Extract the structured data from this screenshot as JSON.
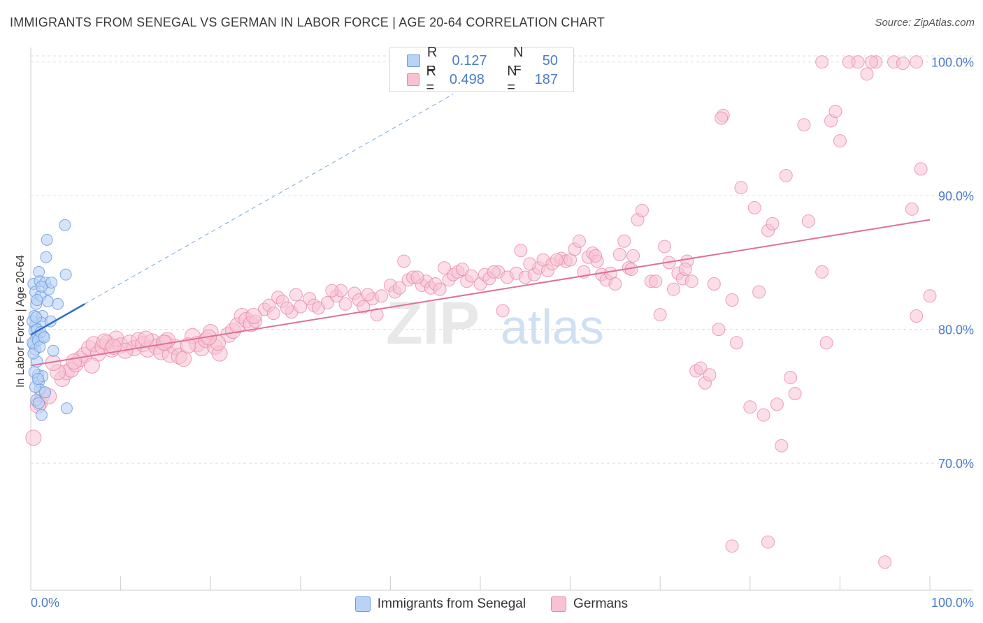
{
  "title": "IMMIGRANTS FROM SENEGAL VS GERMAN IN LABOR FORCE | AGE 20-64 CORRELATION CHART",
  "source": "Source: ZipAtlas.com",
  "watermark": {
    "zip": "ZIP",
    "atlas": "atlas"
  },
  "legend": {
    "r_label": "R =",
    "n_label": "N =",
    "series": [
      {
        "name": "Immigrants from Senegal",
        "r": "0.127",
        "n": "50",
        "fill": "#b9d2f5",
        "stroke": "#6b9be0"
      },
      {
        "name": "Germans",
        "r": "0.498",
        "n": "187",
        "fill": "#f8c2d3",
        "stroke": "#e888a8"
      }
    ]
  },
  "chart_data": {
    "type": "scatter",
    "title": "IMMIGRANTS FROM SENEGAL VS GERMAN IN LABOR FORCE | AGE 20-64 CORRELATION CHART",
    "xlabel": "",
    "ylabel": "In Labor Force | Age 20-64",
    "xlim": [
      0,
      100
    ],
    "ylim": [
      60.5,
      101.5
    ],
    "x_tick_labels": [
      "0.0%",
      "100.0%"
    ],
    "y_ticks": [
      70,
      80,
      90,
      100
    ],
    "y_tick_labels": [
      "70.0%",
      "80.0%",
      "90.0%",
      "100.0%"
    ],
    "grid": true,
    "series": [
      {
        "name": "Immigrants from Senegal",
        "color": "#6b9be0",
        "trend": {
          "x0": 0.0,
          "y0": 79.6,
          "x1": 6.0,
          "y1": 81.9,
          "dash_to_x": 47.0,
          "dash_to_y": 97.6
        },
        "points": [
          [
            0.3,
            83.4
          ],
          [
            0.5,
            82.8
          ],
          [
            0.6,
            81.9
          ],
          [
            0.4,
            81.0
          ],
          [
            0.5,
            80.3
          ],
          [
            0.4,
            79.9
          ],
          [
            0.6,
            79.3
          ],
          [
            0.3,
            78.9
          ],
          [
            0.5,
            78.5
          ],
          [
            0.7,
            77.6
          ],
          [
            0.8,
            76.6
          ],
          [
            0.9,
            76.1
          ],
          [
            1.0,
            75.5
          ],
          [
            0.6,
            74.7
          ],
          [
            1.2,
            73.6
          ],
          [
            0.9,
            84.3
          ],
          [
            1.0,
            83.6
          ],
          [
            1.1,
            82.5
          ],
          [
            1.3,
            81.0
          ],
          [
            1.2,
            80.5
          ],
          [
            1.4,
            79.5
          ],
          [
            1.3,
            76.5
          ],
          [
            1.6,
            75.3
          ],
          [
            1.7,
            85.4
          ],
          [
            1.6,
            83.5
          ],
          [
            1.8,
            86.7
          ],
          [
            1.9,
            82.1
          ],
          [
            2.0,
            83.0
          ],
          [
            2.2,
            80.6
          ],
          [
            2.3,
            83.5
          ],
          [
            2.5,
            78.4
          ],
          [
            3.0,
            81.9
          ],
          [
            3.8,
            87.8
          ],
          [
            3.9,
            84.1
          ],
          [
            4.0,
            74.1
          ],
          [
            0.2,
            80.6
          ],
          [
            0.2,
            79.0
          ],
          [
            0.3,
            78.2
          ],
          [
            0.4,
            76.8
          ],
          [
            0.5,
            75.7
          ],
          [
            0.7,
            80.0
          ],
          [
            0.8,
            79.2
          ],
          [
            1.0,
            78.7
          ],
          [
            1.1,
            79.8
          ],
          [
            1.2,
            83.2
          ],
          [
            0.9,
            74.5
          ],
          [
            0.7,
            82.2
          ],
          [
            0.6,
            80.9
          ],
          [
            0.8,
            76.3
          ],
          [
            1.5,
            79.4
          ]
        ]
      },
      {
        "name": "Germans",
        "color": "#e888a8",
        "trend": {
          "x0": 0.0,
          "y0": 77.3,
          "x1": 100.0,
          "y1": 88.2
        },
        "points": [
          [
            0.3,
            71.9
          ],
          [
            1.0,
            74.5
          ],
          [
            1.3,
            75.1
          ],
          [
            2.0,
            75.0
          ],
          [
            3.5,
            76.3
          ],
          [
            4.0,
            76.8
          ],
          [
            4.5,
            77.0
          ],
          [
            5.0,
            77.4
          ],
          [
            5.5,
            77.8
          ],
          [
            6.0,
            78.1
          ],
          [
            6.5,
            78.6
          ],
          [
            7.0,
            78.9
          ],
          [
            7.5,
            78.2
          ],
          [
            8.0,
            78.7
          ],
          [
            8.5,
            79.0
          ],
          [
            9.0,
            78.5
          ],
          [
            9.5,
            79.3
          ],
          [
            10.0,
            78.8
          ],
          [
            11.0,
            79.0
          ],
          [
            11.5,
            78.6
          ],
          [
            12.0,
            79.2
          ],
          [
            12.5,
            78.9
          ],
          [
            13.0,
            78.5
          ],
          [
            13.5,
            79.1
          ],
          [
            14.0,
            78.7
          ],
          [
            14.5,
            78.3
          ],
          [
            15.0,
            79.0
          ],
          [
            15.5,
            78.1
          ],
          [
            16.0,
            78.7
          ],
          [
            16.5,
            78.0
          ],
          [
            17.0,
            77.8
          ],
          [
            18.0,
            79.5
          ],
          [
            18.5,
            78.9
          ],
          [
            19.0,
            78.6
          ],
          [
            19.5,
            79.2
          ],
          [
            20.0,
            79.8
          ],
          [
            20.5,
            78.7
          ],
          [
            21.0,
            78.2
          ],
          [
            22.0,
            79.6
          ],
          [
            22.5,
            79.9
          ],
          [
            23.0,
            80.3
          ],
          [
            23.5,
            81.0
          ],
          [
            24.0,
            80.7
          ],
          [
            24.5,
            80.4
          ],
          [
            25.0,
            80.6
          ],
          [
            26.0,
            81.5
          ],
          [
            26.5,
            81.8
          ],
          [
            27.0,
            81.2
          ],
          [
            27.5,
            82.4
          ],
          [
            28.0,
            82.1
          ],
          [
            29.0,
            81.3
          ],
          [
            29.5,
            82.6
          ],
          [
            30.0,
            81.7
          ],
          [
            31.0,
            82.3
          ],
          [
            31.5,
            81.8
          ],
          [
            32.0,
            81.6
          ],
          [
            33.0,
            82.0
          ],
          [
            34.0,
            82.5
          ],
          [
            34.5,
            82.9
          ],
          [
            35.0,
            81.9
          ],
          [
            36.0,
            82.7
          ],
          [
            36.5,
            82.2
          ],
          [
            37.0,
            81.7
          ],
          [
            38.0,
            82.3
          ],
          [
            38.5,
            81.1
          ],
          [
            39.0,
            82.5
          ],
          [
            40.0,
            83.3
          ],
          [
            40.5,
            82.8
          ],
          [
            41.0,
            83.1
          ],
          [
            41.5,
            85.1
          ],
          [
            42.0,
            83.7
          ],
          [
            42.5,
            83.9
          ],
          [
            43.5,
            83.3
          ],
          [
            44.0,
            83.6
          ],
          [
            44.5,
            83.1
          ],
          [
            45.0,
            83.4
          ],
          [
            45.5,
            83.0
          ],
          [
            46.5,
            83.7
          ],
          [
            47.0,
            84.1
          ],
          [
            47.5,
            84.3
          ],
          [
            48.0,
            84.5
          ],
          [
            48.5,
            83.6
          ],
          [
            49.0,
            84.0
          ],
          [
            50.0,
            83.4
          ],
          [
            50.5,
            84.1
          ],
          [
            51.0,
            83.8
          ],
          [
            52.0,
            84.3
          ],
          [
            52.5,
            81.4
          ],
          [
            53.0,
            83.9
          ],
          [
            54.0,
            84.2
          ],
          [
            54.5,
            85.9
          ],
          [
            55.0,
            83.9
          ],
          [
            56.0,
            84.1
          ],
          [
            56.5,
            84.6
          ],
          [
            57.0,
            85.2
          ],
          [
            57.5,
            84.4
          ],
          [
            58.0,
            84.9
          ],
          [
            59.0,
            85.3
          ],
          [
            59.5,
            85.1
          ],
          [
            60.0,
            85.2
          ],
          [
            60.5,
            86.0
          ],
          [
            61.0,
            86.6
          ],
          [
            61.5,
            84.3
          ],
          [
            62.0,
            85.4
          ],
          [
            62.5,
            85.7
          ],
          [
            63.0,
            85.1
          ],
          [
            63.5,
            84.1
          ],
          [
            64.0,
            83.7
          ],
          [
            64.5,
            84.2
          ],
          [
            65.0,
            83.4
          ],
          [
            65.5,
            85.6
          ],
          [
            66.0,
            86.6
          ],
          [
            66.5,
            84.6
          ],
          [
            67.0,
            85.5
          ],
          [
            67.5,
            88.2
          ],
          [
            68.0,
            88.9
          ],
          [
            69.0,
            83.6
          ],
          [
            69.5,
            83.6
          ],
          [
            70.0,
            81.1
          ],
          [
            70.5,
            86.2
          ],
          [
            71.0,
            85.0
          ],
          [
            71.5,
            83.0
          ],
          [
            72.0,
            84.2
          ],
          [
            72.5,
            83.8
          ],
          [
            73.0,
            85.1
          ],
          [
            73.5,
            83.6
          ],
          [
            74.0,
            76.9
          ],
          [
            74.5,
            77.1
          ],
          [
            75.0,
            76.0
          ],
          [
            75.5,
            76.6
          ],
          [
            76.0,
            83.4
          ],
          [
            76.5,
            80.0
          ],
          [
            77.0,
            96.0
          ],
          [
            78.0,
            82.2
          ],
          [
            78.5,
            79.0
          ],
          [
            79.0,
            90.6
          ],
          [
            80.0,
            74.2
          ],
          [
            80.5,
            89.1
          ],
          [
            81.0,
            82.8
          ],
          [
            81.5,
            73.6
          ],
          [
            82.0,
            87.4
          ],
          [
            82.5,
            87.9
          ],
          [
            83.0,
            74.4
          ],
          [
            83.5,
            71.3
          ],
          [
            84.0,
            91.5
          ],
          [
            84.5,
            76.4
          ],
          [
            85.0,
            75.2
          ],
          [
            86.0,
            95.3
          ],
          [
            86.5,
            88.1
          ],
          [
            88.0,
            84.3
          ],
          [
            88.5,
            79.0
          ],
          [
            89.0,
            95.6
          ],
          [
            89.5,
            96.3
          ],
          [
            90.0,
            94.1
          ],
          [
            91.0,
            100.0
          ],
          [
            92.0,
            100.0
          ],
          [
            93.0,
            99.1
          ],
          [
            94.0,
            100.0
          ],
          [
            96.0,
            100.0
          ],
          [
            97.0,
            99.9
          ],
          [
            98.0,
            89.0
          ],
          [
            98.5,
            81.0
          ],
          [
            99.0,
            92.0
          ],
          [
            100.0,
            82.5
          ],
          [
            78.0,
            63.8
          ],
          [
            82.0,
            64.1
          ],
          [
            95.0,
            62.6
          ],
          [
            88.0,
            100.0
          ],
          [
            93.5,
            100.0
          ],
          [
            98.5,
            100.0
          ],
          [
            3.0,
            76.8
          ],
          [
            2.5,
            77.5
          ],
          [
            6.8,
            77.3
          ],
          [
            8.2,
            79.1
          ],
          [
            10.5,
            78.4
          ],
          [
            12.8,
            79.3
          ],
          [
            15.2,
            79.2
          ],
          [
            17.5,
            78.8
          ],
          [
            20.8,
            79.0
          ],
          [
            24.8,
            81.0
          ],
          [
            28.5,
            81.6
          ],
          [
            33.5,
            82.9
          ],
          [
            37.5,
            82.6
          ],
          [
            43.0,
            83.9
          ],
          [
            46.0,
            84.6
          ],
          [
            51.5,
            84.3
          ],
          [
            55.5,
            84.9
          ],
          [
            58.5,
            85.2
          ],
          [
            62.8,
            85.5
          ],
          [
            66.8,
            84.5
          ],
          [
            72.8,
            84.5
          ],
          [
            76.8,
            95.8
          ],
          [
            4.8,
            77.6
          ],
          [
            9.2,
            78.7
          ],
          [
            14.8,
            79.0
          ],
          [
            19.8,
            79.4
          ],
          [
            0.8,
            74.3
          ]
        ]
      }
    ]
  }
}
